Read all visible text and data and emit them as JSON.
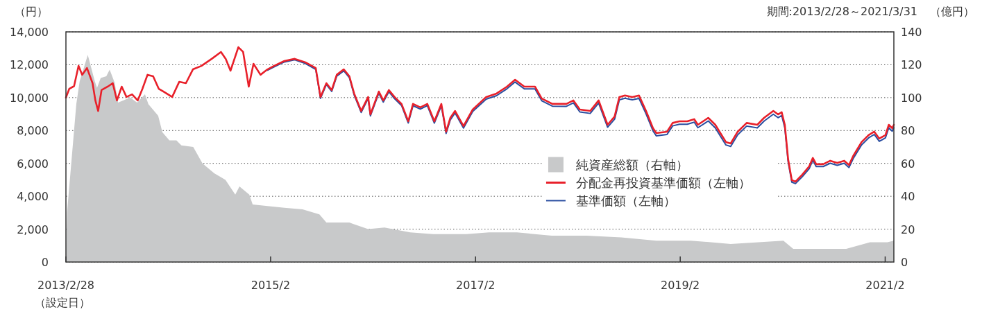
{
  "chart_data": {
    "type": "line",
    "ylabel": "（円）",
    "y2label": "（億円）",
    "annotations": [
      "（設定日）",
      "期間:2013/2/28～2021/3/31"
    ],
    "x": [
      "2013-02-28",
      "2013-03-12",
      "2013-03-29",
      "2013-04-14",
      "2013-04-27",
      "2013-05-14",
      "2013-06-03",
      "2013-06-13",
      "2013-06-23",
      "2013-07-05",
      "2013-07-27",
      "2013-08-14",
      "2013-08-29",
      "2013-09-15",
      "2013-10-02",
      "2013-10-22",
      "2013-11-11",
      "2013-11-28",
      "2013-12-16",
      "2014-01-05",
      "2014-01-25",
      "2014-02-11",
      "2014-03-14",
      "2014-04-08",
      "2014-05-02",
      "2014-05-27",
      "2014-06-26",
      "2014-08-02",
      "2014-09-04",
      "2014-09-21",
      "2014-10-08",
      "2014-11-05",
      "2014-11-22",
      "2014-12-12",
      "2014-12-29",
      "2015-01-23",
      "2015-02-17",
      "2015-03-12",
      "2015-04-18",
      "2015-05-25",
      "2015-07-02",
      "2015-08-08",
      "2015-08-25",
      "2015-09-15",
      "2015-10-04",
      "2015-10-22",
      "2015-11-16",
      "2015-12-06",
      "2015-12-23",
      "2016-01-17",
      "2016-02-11",
      "2016-02-19",
      "2016-03-20",
      "2016-04-05",
      "2016-04-25",
      "2016-05-15",
      "2016-06-09",
      "2016-07-03",
      "2016-07-20",
      "2016-08-15",
      "2016-09-09",
      "2016-10-04",
      "2016-10-29",
      "2016-11-15",
      "2016-11-30",
      "2016-12-17",
      "2017-01-16",
      "2017-02-18",
      "2017-04-07",
      "2017-05-14",
      "2017-06-20",
      "2017-07-19",
      "2017-08-21",
      "2017-09-28",
      "2017-10-22",
      "2017-11-29",
      "2018-01-18",
      "2018-02-12",
      "2018-03-07",
      "2018-04-13",
      "2018-05-13",
      "2018-06-14",
      "2018-07-09",
      "2018-07-26",
      "2018-08-15",
      "2018-09-10",
      "2018-10-04",
      "2018-10-29",
      "2018-11-23",
      "2018-12-05",
      "2019-01-12",
      "2019-02-01",
      "2019-02-25",
      "2019-03-25",
      "2019-04-19",
      "2019-05-02",
      "2019-06-08",
      "2019-07-03",
      "2019-08-10",
      "2019-08-27",
      "2019-09-21",
      "2019-10-23",
      "2019-11-30",
      "2019-12-24",
      "2020-01-26",
      "2020-02-12",
      "2020-02-25",
      "2020-03-07",
      "2020-03-19",
      "2020-04-01",
      "2020-04-14",
      "2020-05-08",
      "2020-06-02",
      "2020-06-15",
      "2020-06-27",
      "2020-07-22",
      "2020-08-16",
      "2020-09-10",
      "2020-10-05",
      "2020-10-22",
      "2020-11-06",
      "2020-12-06",
      "2020-12-31",
      "2021-01-20",
      "2021-02-07",
      "2021-03-01",
      "2021-03-13",
      "2021-03-25",
      "2021-03-31"
    ],
    "series": [
      {
        "name": "純資産総額（右軸）",
        "type": "area",
        "axis": "y2",
        "color": "#c8c9ca",
        "x": [
          "2013-02-28",
          "2013-03-04",
          "2013-03-24",
          "2013-04-06",
          "2013-04-18",
          "2013-05-17",
          "2013-06-11",
          "2013-06-19",
          "2013-07-02",
          "2013-07-22",
          "2013-08-03",
          "2013-08-21",
          "2013-09-02",
          "2013-10-15",
          "2013-11-09",
          "2013-12-07",
          "2013-12-19",
          "2014-01-23",
          "2014-02-07",
          "2014-03-04",
          "2014-03-29",
          "2014-04-16",
          "2014-05-28",
          "2014-06-30",
          "2014-08-11",
          "2014-09-20",
          "2014-10-25",
          "2014-11-09",
          "2014-12-14",
          "2014-12-26",
          "2015-02-17",
          "2015-04-18",
          "2015-06-22",
          "2015-08-21",
          "2015-09-15",
          "2015-12-06",
          "2016-02-11",
          "2016-04-09",
          "2016-07-10",
          "2016-09-30",
          "2016-11-27",
          "2017-01-26",
          "2017-04-17",
          "2017-07-26",
          "2017-11-27",
          "2018-03-31",
          "2018-08-02",
          "2018-12-05",
          "2019-04-07",
          "2019-08-27",
          "2020-03-02",
          "2020-04-06",
          "2020-07-22",
          "2020-10-12",
          "2021-01-05",
          "2021-03-08",
          "2021-03-31"
        ],
        "values": [
          3,
          30,
          70,
          96,
          110,
          126,
          110,
          106,
          112,
          113,
          117,
          109,
          97,
          100,
          97,
          102,
          96,
          89,
          79,
          74,
          74,
          71,
          70,
          60,
          54,
          50,
          41,
          46,
          41,
          35,
          34,
          33,
          32,
          29,
          24,
          24,
          20,
          21,
          18,
          17,
          17,
          17,
          18,
          18,
          16,
          16,
          15,
          13,
          13,
          11,
          13,
          8,
          8,
          8,
          12,
          12,
          13
        ]
      },
      {
        "name": "分配金再投資基準価額（左軸）",
        "axis": "y",
        "color": "#e8202a",
        "values": [
          10000,
          10540,
          10700,
          11930,
          11390,
          11800,
          10880,
          9830,
          9190,
          10460,
          10670,
          10880,
          9830,
          10670,
          10040,
          10200,
          9830,
          10540,
          11390,
          11300,
          10540,
          10370,
          10040,
          10960,
          10880,
          11720,
          11930,
          12360,
          12780,
          12360,
          11640,
          13070,
          12780,
          10670,
          12060,
          11390,
          11720,
          11930,
          12230,
          12360,
          12150,
          11800,
          10040,
          10880,
          10460,
          11390,
          11720,
          11300,
          10250,
          9190,
          10040,
          8980,
          10370,
          9830,
          10460,
          10040,
          9620,
          8560,
          9620,
          9410,
          9620,
          8560,
          9620,
          7930,
          8770,
          9190,
          8270,
          9280,
          10040,
          10250,
          10670,
          11090,
          10670,
          10670,
          9950,
          9620,
          9620,
          9830,
          9280,
          9190,
          9830,
          8350,
          8850,
          10040,
          10130,
          10040,
          10130,
          9190,
          8140,
          7840,
          7930,
          8460,
          8560,
          8560,
          8690,
          8350,
          8770,
          8350,
          7300,
          7210,
          7930,
          8460,
          8350,
          8770,
          9190,
          8980,
          9110,
          8350,
          6240,
          4980,
          4890,
          5310,
          5820,
          6330,
          5950,
          5950,
          6160,
          6030,
          6160,
          5900,
          6450,
          7300,
          7720,
          7930,
          7510,
          7720,
          8350,
          8140,
          8350
        ]
      },
      {
        "name": "基準価額（左軸）",
        "axis": "y",
        "color": "#2a4ea0",
        "values": [
          null,
          null,
          null,
          null,
          null,
          null,
          null,
          null,
          null,
          null,
          null,
          null,
          null,
          null,
          null,
          null,
          null,
          null,
          null,
          null,
          null,
          null,
          null,
          null,
          null,
          null,
          null,
          null,
          null,
          null,
          null,
          null,
          null,
          null,
          null,
          null,
          11670,
          11870,
          12170,
          12300,
          12080,
          11720,
          9960,
          10800,
          10380,
          11300,
          11630,
          11210,
          10160,
          9100,
          9950,
          8890,
          10270,
          9730,
          10360,
          9940,
          9520,
          8460,
          9510,
          9300,
          9510,
          8450,
          9500,
          7820,
          8650,
          9070,
          8150,
          9160,
          9910,
          10120,
          10540,
          10950,
          10530,
          10530,
          9810,
          9480,
          9470,
          9680,
          9130,
          9040,
          9670,
          8200,
          8690,
          9870,
          9960,
          9870,
          9950,
          9020,
          7970,
          7670,
          7760,
          8280,
          8380,
          8380,
          8510,
          8170,
          8580,
          8160,
          7120,
          7030,
          7740,
          8270,
          8160,
          8570,
          8990,
          8780,
          8910,
          8160,
          6080,
          4860,
          4770,
          5180,
          5680,
          6190,
          5810,
          5810,
          6010,
          5880,
          6010,
          5750,
          6290,
          7130,
          7550,
          7760,
          7340,
          7550,
          8170,
          7960,
          8170
        ]
      }
    ],
    "xlim": [
      "2013-02-28",
      "2021-03-31"
    ],
    "xticks": [
      {
        "value": "2013-02-28",
        "label": "2013/2/28"
      },
      {
        "value": "2015-02-28",
        "label": "2015/2"
      },
      {
        "value": "2017-02-28",
        "label": "2017/2"
      },
      {
        "value": "2019-02-28",
        "label": "2019/2"
      },
      {
        "value": "2021-02-28",
        "label": "2021/2"
      }
    ],
    "ylim": [
      0,
      14000
    ],
    "yticks": [
      {
        "value": 0,
        "label": "0"
      },
      {
        "value": 2000,
        "label": "2,000"
      },
      {
        "value": 4000,
        "label": "4,000"
      },
      {
        "value": 6000,
        "label": "6,000"
      },
      {
        "value": 8000,
        "label": "8,000"
      },
      {
        "value": 10000,
        "label": "10,000"
      },
      {
        "value": 12000,
        "label": "12,000"
      },
      {
        "value": 14000,
        "label": "14,000"
      }
    ],
    "y2lim": [
      0,
      140
    ],
    "y2ticks": [
      0,
      20,
      40,
      60,
      80,
      100,
      120,
      140
    ],
    "grid": "y",
    "legend": "right"
  }
}
